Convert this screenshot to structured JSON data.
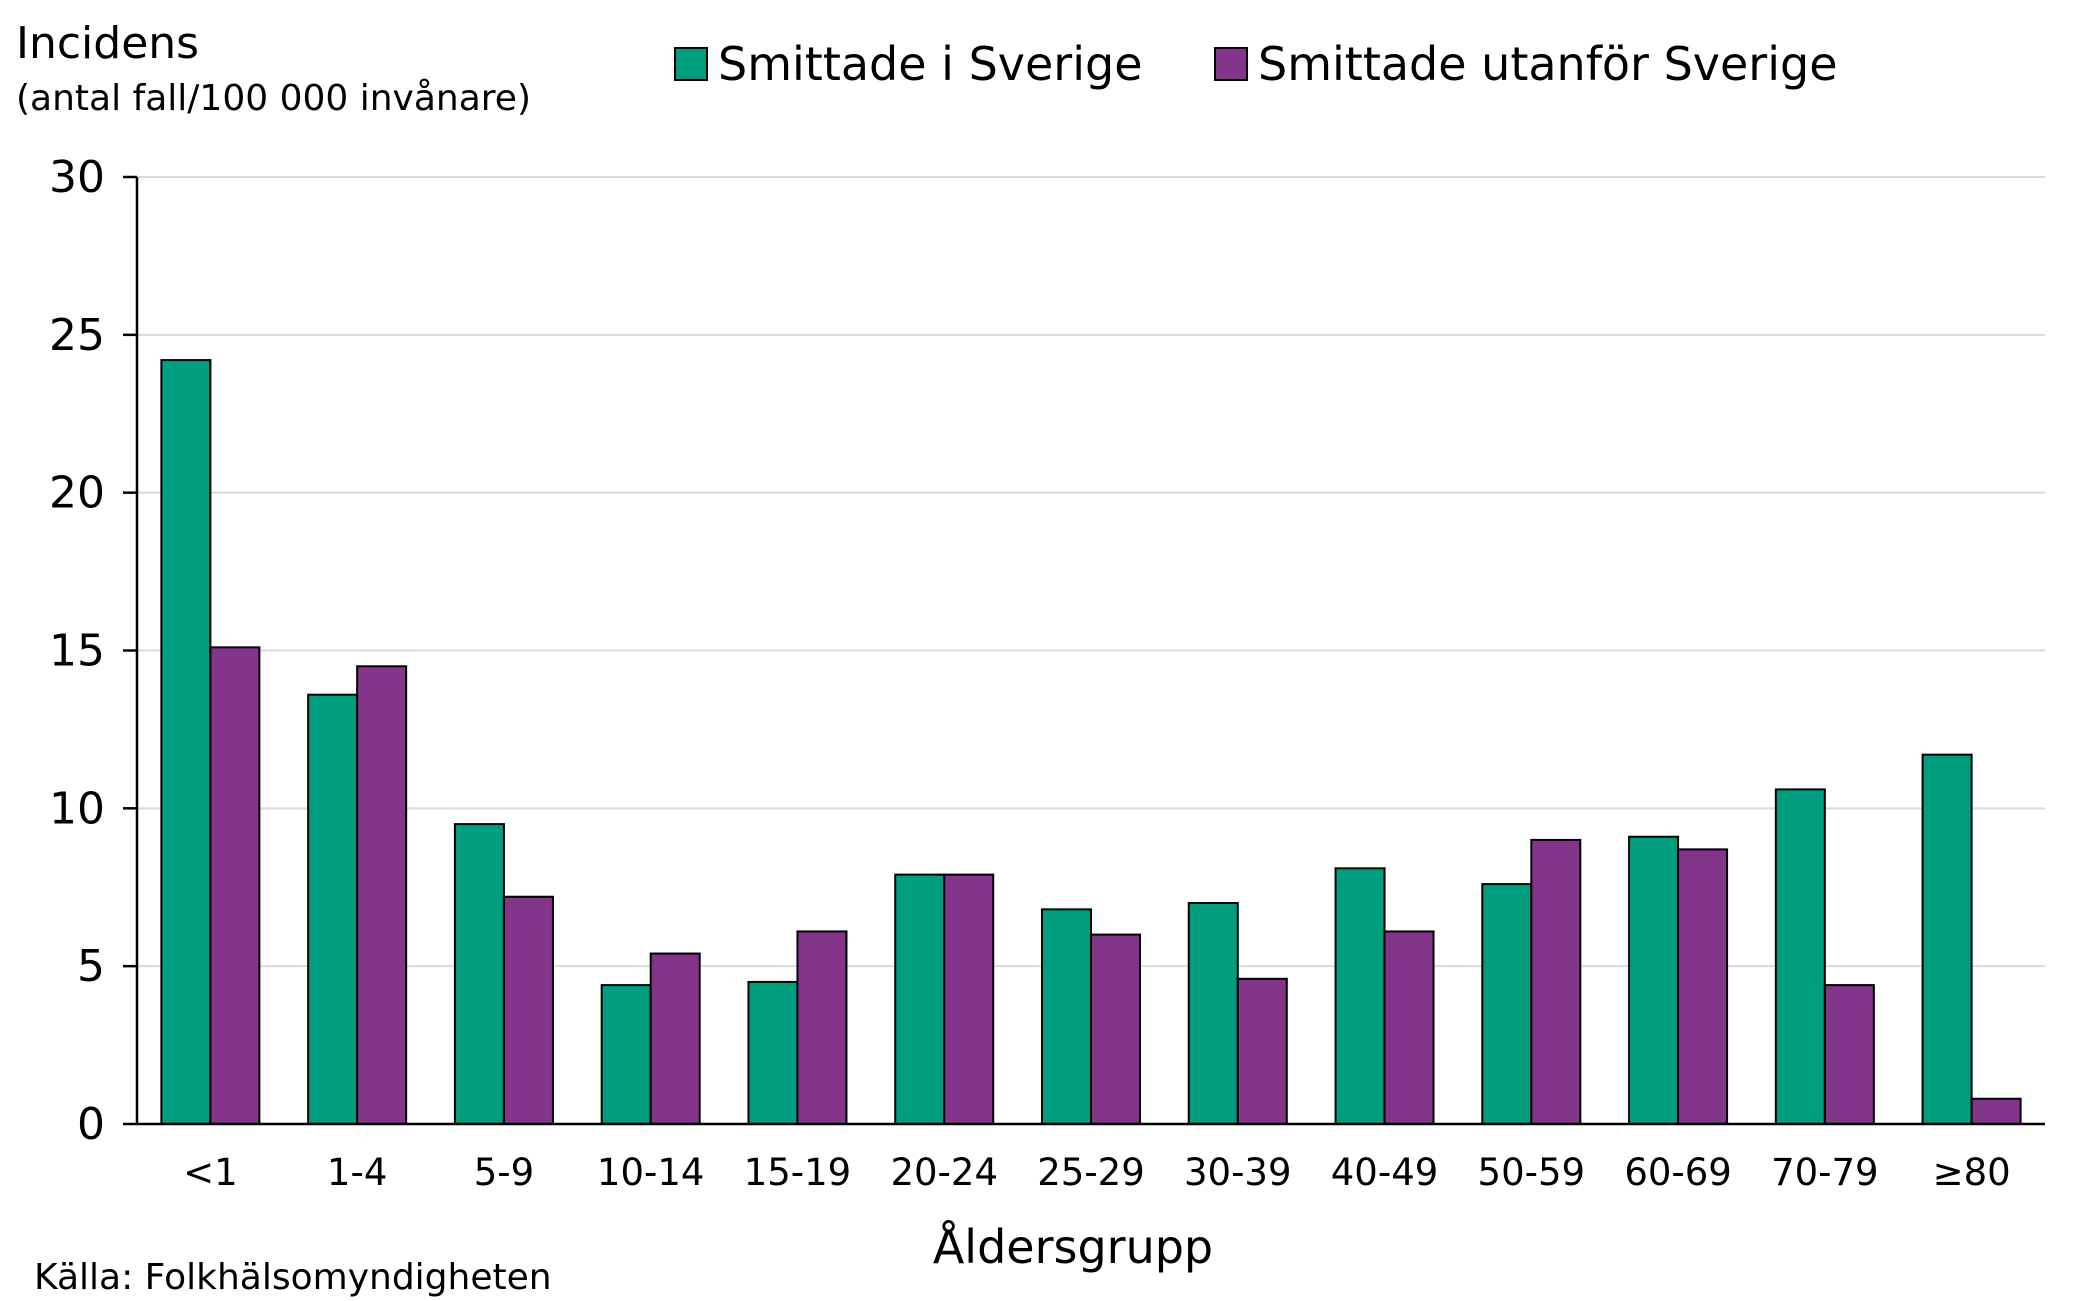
{
  "chart_data": {
    "type": "bar",
    "title": "",
    "ylabel": "Incidens",
    "ylabel_sub": "(antal fall/100 000 invånare)",
    "xlabel": "Åldersgrupp",
    "ylim": [
      0,
      30
    ],
    "yticks": [
      0,
      5,
      10,
      15,
      20,
      25,
      30
    ],
    "grid": true,
    "legend_position": "top",
    "categories": [
      "<1",
      "1-4",
      "5-9",
      "10-14",
      "15-19",
      "20-24",
      "25-29",
      "30-39",
      "40-49",
      "50-59",
      "60-69",
      "70-79",
      "≥80"
    ],
    "series": [
      {
        "name": "Smittade i Sverige",
        "color": "#009e7e",
        "values": [
          24.2,
          13.6,
          9.5,
          4.4,
          4.5,
          7.9,
          6.8,
          7.0,
          8.1,
          7.6,
          9.1,
          10.6,
          11.7
        ]
      },
      {
        "name": "Smittade utanför Sverige",
        "color": "#833689",
        "values": [
          15.1,
          14.5,
          7.2,
          5.4,
          6.1,
          7.9,
          6.0,
          4.6,
          6.1,
          9.0,
          8.7,
          4.4,
          0.8
        ]
      }
    ]
  },
  "source": "Källa: Folkhälsomyndigheten"
}
